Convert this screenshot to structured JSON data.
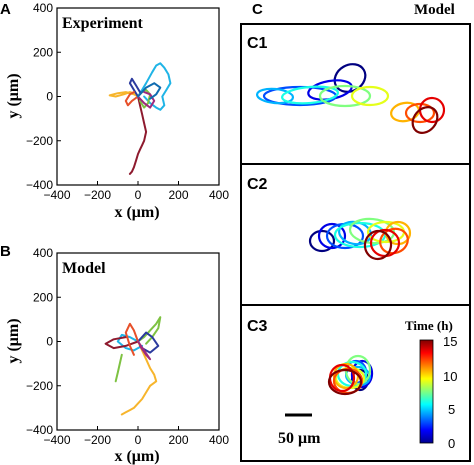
{
  "panel_labels": {
    "a": "A",
    "b": "B",
    "c": "C",
    "c1": "C1",
    "c2": "C2",
    "c3": "C3"
  },
  "model_header": "Model",
  "scale_bar_label": "50 μm",
  "chart_data": [
    {
      "id": "A",
      "type": "line",
      "title": "Experiment",
      "xlabel": "x (μm)",
      "ylabel": "y (μm)",
      "xlim": [
        -400,
        400
      ],
      "ylim": [
        -400,
        400
      ],
      "xticks": [
        "−400",
        "−200",
        "0",
        "200",
        "400"
      ],
      "yticks": [
        "400",
        "200",
        "0",
        "−200",
        "−400"
      ],
      "grid": false,
      "series": [
        {
          "color": "#1fb4e6",
          "x": [
            0,
            20,
            40,
            70,
            90,
            110,
            130,
            150,
            160,
            140,
            120,
            130,
            110,
            90,
            60,
            40,
            30
          ],
          "y": [
            0,
            30,
            60,
            110,
            140,
            150,
            130,
            100,
            60,
            30,
            0,
            -40,
            -60,
            -50,
            -30,
            -10,
            0
          ]
        },
        {
          "color": "#f7b52c",
          "x": [
            0,
            -20,
            -60,
            -100,
            -140,
            -110,
            -70,
            -40,
            -20,
            0
          ],
          "y": [
            0,
            10,
            20,
            15,
            5,
            0,
            10,
            20,
            15,
            0
          ]
        },
        {
          "color": "#8e1a2e",
          "x": [
            0,
            10,
            20,
            30,
            40,
            30,
            20,
            10,
            0,
            -10,
            -20,
            -30,
            -40
          ],
          "y": [
            0,
            -40,
            -80,
            -120,
            -160,
            -200,
            -220,
            -240,
            -260,
            -290,
            -320,
            -340,
            -350
          ]
        },
        {
          "color": "#7ec242",
          "x": [
            0,
            20,
            40,
            60,
            50,
            30,
            10
          ],
          "y": [
            0,
            20,
            30,
            10,
            -30,
            -50,
            -20
          ]
        },
        {
          "color": "#2b3a9e",
          "x": [
            0,
            -20,
            -40,
            -30,
            -10,
            10
          ],
          "y": [
            0,
            30,
            60,
            80,
            50,
            20
          ]
        },
        {
          "color": "#e7502a",
          "x": [
            0,
            -30,
            -50,
            -60,
            -40,
            -20
          ],
          "y": [
            0,
            -20,
            -40,
            -20,
            10,
            20
          ]
        },
        {
          "color": "#9e2a7e",
          "x": [
            0,
            30,
            60,
            80,
            60,
            30
          ],
          "y": [
            0,
            -30,
            -50,
            -20,
            10,
            20
          ]
        },
        {
          "color": "#0f6bb0",
          "x": [
            0,
            40,
            80,
            110,
            90,
            60
          ],
          "y": [
            0,
            40,
            60,
            40,
            10,
            -10
          ]
        }
      ]
    },
    {
      "id": "B",
      "type": "line",
      "title": "Model",
      "xlabel": "x (μm)",
      "ylabel": "y (μm)",
      "xlim": [
        -400,
        400
      ],
      "ylim": [
        -400,
        400
      ],
      "xticks": [
        "−400",
        "−200",
        "0",
        "200",
        "400"
      ],
      "yticks": [
        "400",
        "200",
        "0",
        "−200",
        "−400"
      ],
      "grid": false,
      "series": [
        {
          "color": "#f7b52c",
          "x": [
            0,
            20,
            40,
            60,
            80,
            90,
            60,
            40,
            20,
            0,
            -20,
            -40,
            -60,
            -80
          ],
          "y": [
            0,
            -40,
            -80,
            -120,
            -150,
            -180,
            -200,
            -230,
            -260,
            -280,
            -300,
            -310,
            -320,
            -330
          ]
        },
        {
          "color": "#7ec242",
          "x": [
            0,
            30,
            60,
            90,
            110,
            100,
            70,
            40
          ],
          "y": [
            0,
            20,
            50,
            80,
            110,
            60,
            20,
            -10
          ]
        },
        {
          "color": "#1fb4e6",
          "x": [
            0,
            -40,
            -80,
            -100,
            -60,
            -20,
            20
          ],
          "y": [
            0,
            20,
            30,
            0,
            -30,
            -40,
            -20
          ]
        },
        {
          "color": "#8e1a2e",
          "x": [
            0,
            -60,
            -120,
            -160,
            -120,
            -60
          ],
          "y": [
            0,
            -20,
            -30,
            -10,
            10,
            20
          ]
        },
        {
          "color": "#2b3a9e",
          "x": [
            0,
            40,
            70,
            100,
            60,
            20
          ],
          "y": [
            0,
            40,
            20,
            -20,
            -50,
            -30
          ]
        },
        {
          "color": "#e7502a",
          "x": [
            0,
            -20,
            -40,
            -60,
            -40,
            -20
          ],
          "y": [
            0,
            50,
            80,
            40,
            -20,
            -60
          ]
        },
        {
          "color": "#9e2a7e",
          "x": [
            0,
            30,
            60,
            40,
            10
          ],
          "y": [
            0,
            -40,
            -80,
            -60,
            -20
          ]
        },
        {
          "color": "#7ec242",
          "x": [
            -80,
            -90,
            -100,
            -110
          ],
          "y": [
            -60,
            -100,
            -140,
            -180
          ]
        }
      ]
    },
    {
      "id": "C1",
      "type": "line",
      "coloring": "time",
      "series": [
        {
          "t": [
            0,
            1.5,
            3,
            4.5,
            6,
            7.5,
            9,
            10.5,
            12,
            13.5,
            15
          ]
        }
      ]
    },
    {
      "id": "C2",
      "type": "line",
      "coloring": "time",
      "series": [
        {
          "t": [
            0,
            1.5,
            3,
            4.5,
            6,
            7.5,
            9,
            10.5,
            12,
            13.5,
            15
          ]
        }
      ]
    },
    {
      "id": "C3",
      "type": "line",
      "coloring": "time",
      "colorbar": {
        "label": "Time (h)",
        "ticks": [
          "15",
          "10",
          "5",
          "0"
        ],
        "min": 0,
        "max": 15,
        "colormap": "jet"
      },
      "series": [
        {
          "t": [
            0,
            1.5,
            3,
            4.5,
            6,
            7.5,
            9,
            10.5,
            12,
            13.5,
            15
          ]
        }
      ]
    }
  ]
}
